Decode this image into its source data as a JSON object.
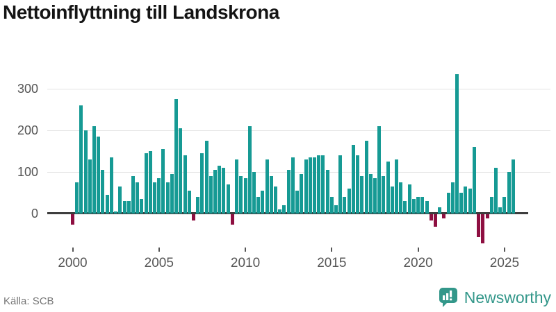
{
  "header": {
    "title": "Nettoinflyttning till Landskrona"
  },
  "footer": {
    "source_label": "Källa: SCB",
    "brand_name": "Newsworthy"
  },
  "colors": {
    "positive_bar": "#169a94",
    "negative_bar": "#8e0f41",
    "zero_line": "#3d3d3d",
    "gridline": "#e2e2e2",
    "axis_text": "#555555",
    "title_text": "#141414",
    "source_text": "#767676",
    "brand_teal": "#33978a"
  },
  "chart_data": {
    "type": "bar",
    "title": "Nettoinflyttning till Landskrona",
    "frequency": "quarterly",
    "x_start": "2000-Q1",
    "x_end": "2025-Q3",
    "values": [
      -25,
      75,
      260,
      200,
      130,
      210,
      185,
      105,
      45,
      135,
      5,
      65,
      30,
      30,
      90,
      75,
      35,
      145,
      150,
      75,
      85,
      155,
      75,
      95,
      275,
      205,
      140,
      55,
      -15,
      40,
      145,
      175,
      90,
      105,
      115,
      110,
      70,
      -25,
      130,
      90,
      85,
      210,
      100,
      40,
      55,
      130,
      90,
      65,
      10,
      20,
      105,
      135,
      55,
      95,
      130,
      135,
      135,
      140,
      140,
      105,
      40,
      20,
      140,
      40,
      60,
      165,
      140,
      90,
      175,
      95,
      85,
      210,
      90,
      125,
      65,
      130,
      75,
      30,
      70,
      35,
      40,
      40,
      30,
      -15,
      -30,
      15,
      -10,
      50,
      75,
      335,
      50,
      65,
      60,
      160,
      -55,
      -70,
      -10,
      40,
      110,
      15,
      40,
      100,
      130
    ],
    "y_ticks": [
      0,
      100,
      200,
      300
    ],
    "x_ticks": [
      "2000",
      "2005",
      "2010",
      "2015",
      "2020",
      "2025"
    ],
    "ylim": [
      -75,
      340
    ],
    "grid": true,
    "legend": false,
    "positive_color": "#169a94",
    "negative_color": "#8e0f41"
  }
}
